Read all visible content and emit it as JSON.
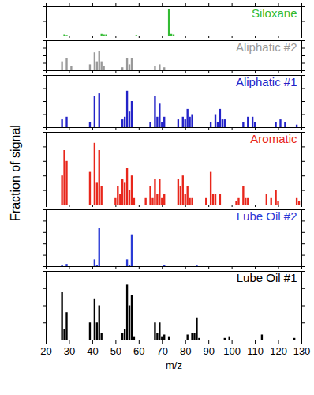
{
  "chart_data": [
    {
      "type": "bar",
      "title": "Siloxane",
      "color": "#33bb33",
      "xlim": [
        20,
        130
      ],
      "xticks": [
        20,
        30,
        40,
        50,
        60,
        70,
        80,
        90,
        100,
        110,
        120,
        130
      ],
      "ylim": [
        0,
        0.5
      ],
      "yticks": [
        0,
        0.25,
        0.5
      ],
      "tick_labels": false,
      "x": [
        28,
        29,
        44,
        45,
        46,
        59,
        73,
        74,
        75
      ],
      "values": [
        0.02,
        0.01,
        0.03,
        0.02,
        0.02,
        0.01,
        0.45,
        0.03,
        0.02
      ]
    },
    {
      "type": "bar",
      "title": "Aliphatic #2",
      "color": "#999999",
      "xlim": [
        20,
        130
      ],
      "xticks": [
        20,
        30,
        40,
        50,
        60,
        70,
        80,
        90,
        100,
        110,
        120,
        130
      ],
      "ylim": [
        0,
        0.2
      ],
      "yticks": [
        0,
        0.05,
        0.1,
        0.15,
        0.2
      ],
      "tick_labels": false,
      "x": [
        27,
        29,
        31,
        39,
        41,
        42,
        43,
        44,
        45,
        53,
        55,
        56,
        57,
        67,
        69,
        71
      ],
      "values": [
        0.06,
        0.08,
        0.03,
        0.04,
        0.12,
        0.06,
        0.13,
        0.06,
        0.03,
        0.02,
        0.08,
        0.04,
        0.08,
        0.03,
        0.04,
        0.02
      ]
    },
    {
      "type": "bar",
      "title": "Aliphatic #1",
      "color": "#2323c8",
      "xlim": [
        20,
        130
      ],
      "xticks": [
        20,
        30,
        40,
        50,
        60,
        70,
        80,
        90,
        100,
        110,
        120,
        130
      ],
      "ylim": [
        0,
        0.1
      ],
      "yticks": [
        0,
        0.025,
        0.05,
        0.075,
        0.1
      ],
      "tick_labels": false,
      "x": [
        27,
        29,
        39,
        41,
        43,
        53,
        54,
        55,
        56,
        57,
        65,
        67,
        68,
        69,
        70,
        71,
        77,
        79,
        80,
        81,
        82,
        83,
        91,
        93,
        94,
        95,
        96,
        97,
        105,
        107,
        109,
        110,
        119,
        121,
        123,
        128
      ],
      "values": [
        0.015,
        0.02,
        0.01,
        0.06,
        0.065,
        0.015,
        0.02,
        0.07,
        0.03,
        0.05,
        0.01,
        0.06,
        0.02,
        0.045,
        0.01,
        0.02,
        0.015,
        0.02,
        0.015,
        0.035,
        0.02,
        0.025,
        0.01,
        0.025,
        0.01,
        0.035,
        0.015,
        0.015,
        0.01,
        0.02,
        0.02,
        0.01,
        0.01,
        0.015,
        0.01,
        0.005
      ]
    },
    {
      "type": "bar",
      "title": "Aromatic",
      "color": "#e8261b",
      "xlim": [
        20,
        130
      ],
      "xticks": [
        20,
        30,
        40,
        50,
        60,
        70,
        80,
        90,
        100,
        110,
        120,
        130
      ],
      "ylim": [
        0,
        0.1
      ],
      "yticks": [
        0,
        0.02,
        0.04,
        0.06,
        0.08,
        0.1
      ],
      "tick_labels": false,
      "x": [
        27,
        28,
        29,
        39,
        41,
        42,
        43,
        44,
        50,
        51,
        52,
        53,
        54,
        55,
        56,
        57,
        58,
        63,
        65,
        66,
        67,
        68,
        69,
        70,
        71,
        77,
        78,
        79,
        80,
        81,
        82,
        83,
        89,
        91,
        92,
        93,
        95,
        102,
        103,
        105,
        106,
        107,
        115,
        117,
        119,
        120,
        128,
        129
      ],
      "values": [
        0.04,
        0.075,
        0.06,
        0.045,
        0.085,
        0.03,
        0.075,
        0.025,
        0.01,
        0.025,
        0.015,
        0.035,
        0.03,
        0.05,
        0.02,
        0.04,
        0.01,
        0.01,
        0.025,
        0.01,
        0.035,
        0.015,
        0.035,
        0.01,
        0.015,
        0.035,
        0.025,
        0.04,
        0.015,
        0.025,
        0.01,
        0.01,
        0.01,
        0.045,
        0.015,
        0.015,
        0.015,
        0.005,
        0.01,
        0.025,
        0.01,
        0.01,
        0.015,
        0.01,
        0.02,
        0.005,
        0.01,
        0.005
      ]
    },
    {
      "type": "bar",
      "title": "Lube Oil #2",
      "color": "#2a3bd6",
      "xlim": [
        20,
        130
      ],
      "xticks": [
        20,
        30,
        40,
        50,
        60,
        70,
        80,
        90,
        100,
        110,
        120,
        130
      ],
      "ylim": [
        0,
        0.25
      ],
      "yticks": [
        0,
        0.05,
        0.1,
        0.15,
        0.2,
        0.25
      ],
      "tick_labels": false,
      "x": [
        27,
        29,
        41,
        42,
        43,
        55,
        56,
        57,
        71,
        85
      ],
      "values": [
        0.005,
        0.01,
        0.03,
        0.005,
        0.17,
        0.03,
        0.005,
        0.14,
        0.005,
        0.003
      ]
    },
    {
      "type": "bar",
      "title": "Lube Oil #1",
      "color": "#000000",
      "xlim": [
        20,
        130
      ],
      "xticks": [
        20,
        30,
        40,
        50,
        60,
        70,
        80,
        90,
        100,
        110,
        120,
        130
      ],
      "ylim": [
        0,
        0.2
      ],
      "yticks": [
        0,
        0.05,
        0.1,
        0.15,
        0.2
      ],
      "tick_labels": "x",
      "xlabel": "m/z",
      "ylabel": "Fraction of signal",
      "x": [
        27,
        28,
        29,
        39,
        41,
        42,
        43,
        44,
        53,
        54,
        55,
        56,
        57,
        58,
        67,
        68,
        69,
        70,
        71,
        73,
        81,
        83,
        84,
        85,
        86,
        97,
        99,
        113,
        127
      ],
      "values": [
        0.14,
        0.03,
        0.08,
        0.05,
        0.12,
        0.05,
        0.1,
        0.02,
        0.02,
        0.03,
        0.16,
        0.1,
        0.13,
        0.01,
        0.05,
        0.02,
        0.05,
        0.01,
        0.015,
        0.01,
        0.015,
        0.02,
        0.02,
        0.065,
        0.005,
        0.005,
        0.01,
        0.015,
        0.005
      ]
    }
  ]
}
